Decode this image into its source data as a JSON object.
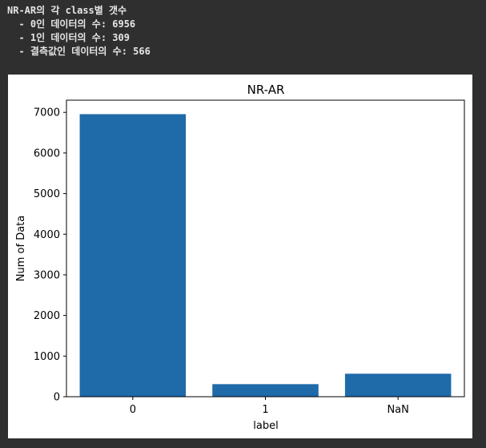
{
  "console": {
    "lines": [
      "NR-AR의 각 class별 갯수",
      "  - 0인 데이터의 수: 6956",
      "  - 1인 데이터의 수: 309",
      "  - 결측값인 데이터의 수: 566"
    ]
  },
  "chart_data": {
    "type": "bar",
    "title": "NR-AR",
    "xlabel": "label",
    "ylabel": "Num of Data",
    "categories": [
      "0",
      "1",
      "NaN"
    ],
    "values": [
      6956,
      309,
      566
    ],
    "ylim": [
      0,
      7300
    ],
    "yticks": [
      0,
      1000,
      2000,
      3000,
      4000,
      5000,
      6000,
      7000
    ],
    "bar_color": "#1f6aa8",
    "grid": false
  }
}
